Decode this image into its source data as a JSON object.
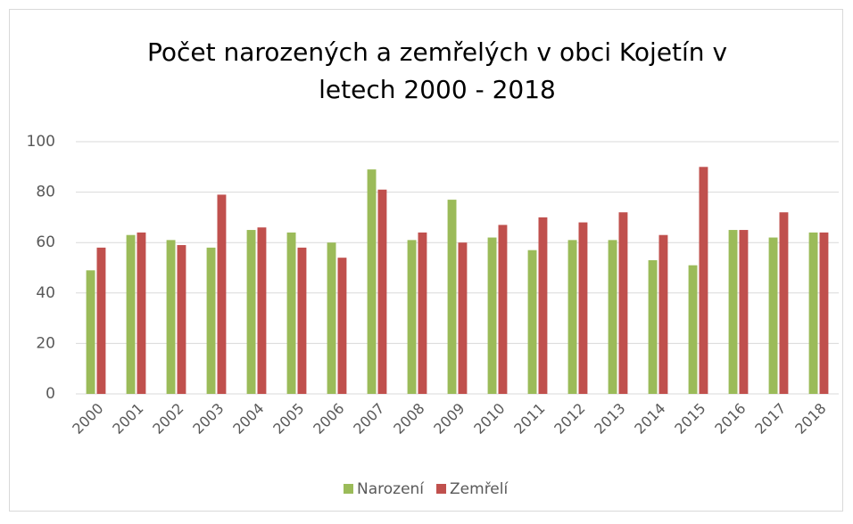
{
  "chart_data": {
    "type": "bar",
    "title": "Počet narozených a zemřelých v obci Kojetín v",
    "subtitle": "letech 2000 - 2018",
    "categories": [
      "2000",
      "2001",
      "2002",
      "2003",
      "2004",
      "2005",
      "2006",
      "2007",
      "2008",
      "2009",
      "2010",
      "2011",
      "2012",
      "2013",
      "2014",
      "2015",
      "2016",
      "2017",
      "2018"
    ],
    "series": [
      {
        "name": "Narození",
        "color": "#9bbb59",
        "values": [
          49,
          63,
          61,
          58,
          65,
          64,
          60,
          89,
          61,
          77,
          62,
          57,
          61,
          61,
          53,
          51,
          65,
          62,
          64
        ]
      },
      {
        "name": "Zemřelí",
        "color": "#c0504d",
        "values": [
          58,
          64,
          59,
          79,
          66,
          58,
          54,
          81,
          64,
          60,
          67,
          70,
          68,
          72,
          63,
          90,
          65,
          72,
          64
        ]
      }
    ],
    "ylim": [
      0,
      100
    ],
    "yticks": [
      0,
      20,
      40,
      60,
      80,
      100
    ],
    "grid": true,
    "legend": "bottom"
  }
}
